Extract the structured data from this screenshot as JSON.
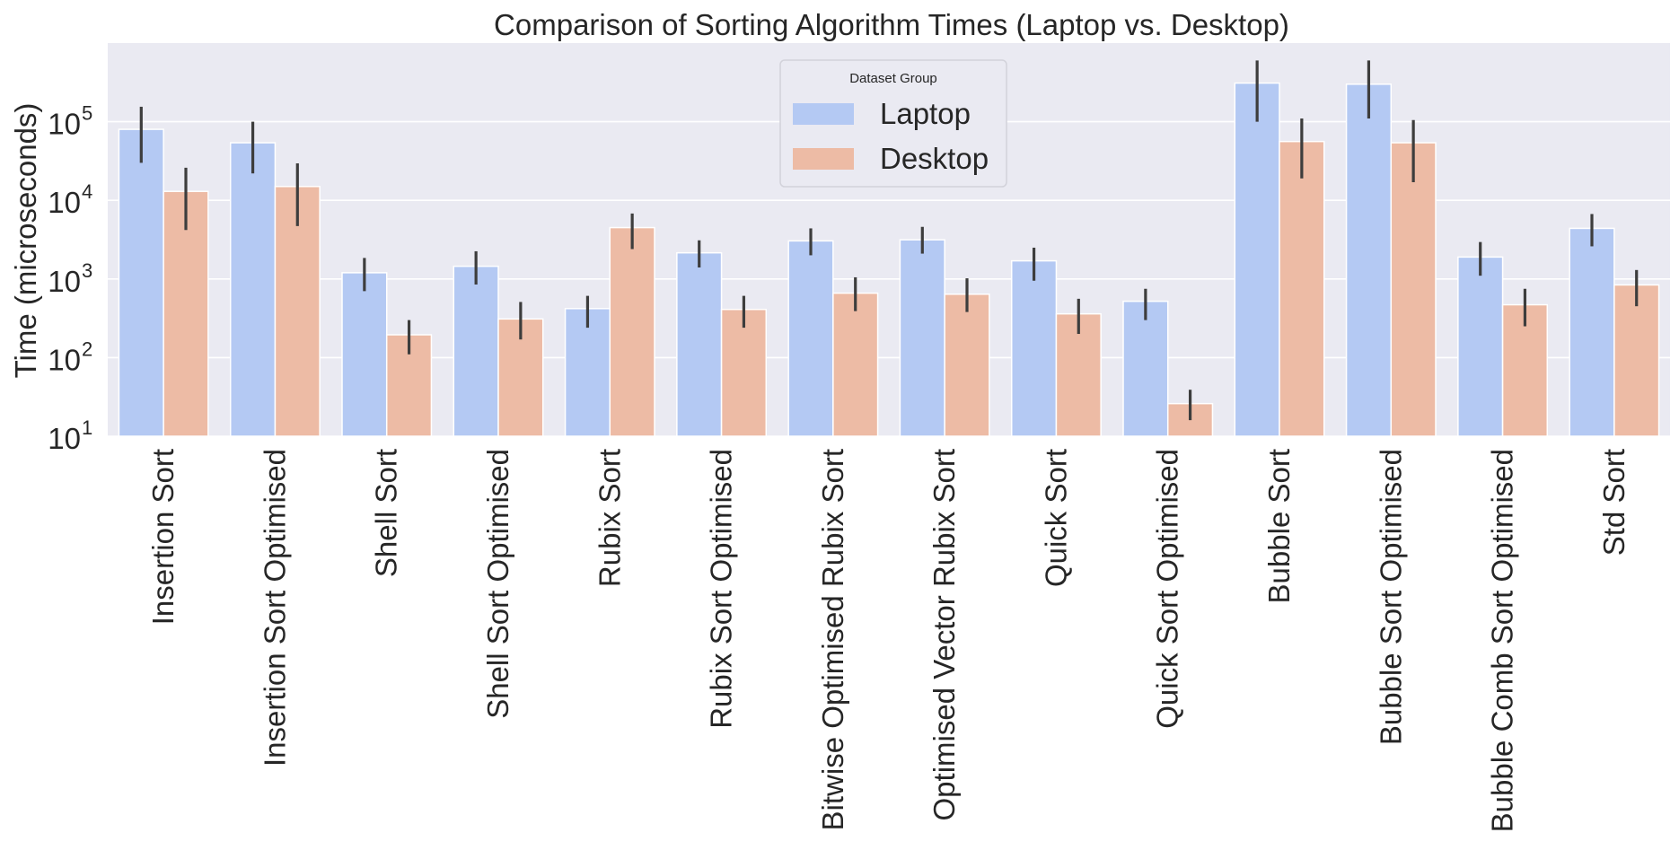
{
  "chart_data": {
    "type": "bar",
    "title": "Comparison of Sorting Algorithm Times (Laptop vs. Desktop)",
    "xlabel": "",
    "ylabel": "Time (microseconds)",
    "y_scale": "log",
    "ylim": [
      10,
      1000000
    ],
    "y_ticks": [
      {
        "base": "10",
        "exp": "1"
      },
      {
        "base": "10",
        "exp": "2"
      },
      {
        "base": "10",
        "exp": "3"
      },
      {
        "base": "10",
        "exp": "4"
      },
      {
        "base": "10",
        "exp": "5"
      }
    ],
    "grid": true,
    "legend": {
      "title": "Dataset Group",
      "placement": "top-center"
    },
    "categories": [
      "Insertion Sort",
      "Insertion Sort Optimised",
      "Shell Sort",
      "Shell Sort Optimised",
      "Rubix Sort",
      "Rubix Sort Optimised",
      "Bitwise Optimised Rubix Sort",
      "Optimised Vector Rubix Sort",
      "Quick Sort",
      "Quick Sort Optimised",
      "Bubble Sort",
      "Bubble Sort Optimised",
      "Bubble Comb Sort Optimised",
      "Std Sort"
    ],
    "series": [
      {
        "name": "Laptop",
        "color": "#b4c9f3",
        "values": [
          80000,
          54000,
          1200,
          1450,
          420,
          2150,
          3050,
          3150,
          1700,
          520,
          310000,
          300000,
          1900,
          4400
        ],
        "err_low": [
          30000,
          22000,
          700,
          850,
          240,
          1400,
          2000,
          2100,
          950,
          300,
          100000,
          110000,
          1100,
          2600
        ],
        "err_high": [
          155000,
          100000,
          1850,
          2250,
          610,
          3100,
          4400,
          4600,
          2500,
          750,
          600000,
          600000,
          2950,
          6700
        ]
      },
      {
        "name": "Desktop",
        "color": "#edbba5",
        "values": [
          13000,
          15000,
          195,
          310,
          4500,
          410,
          660,
          640,
          360,
          26,
          56000,
          54000,
          470,
          840
        ],
        "err_low": [
          4200,
          4700,
          110,
          170,
          2400,
          240,
          390,
          380,
          200,
          16,
          19000,
          17000,
          250,
          450
        ],
        "err_high": [
          26000,
          29500,
          300,
          510,
          6800,
          610,
          1050,
          1020,
          560,
          39,
          110000,
          105000,
          750,
          1300
        ]
      }
    ]
  }
}
